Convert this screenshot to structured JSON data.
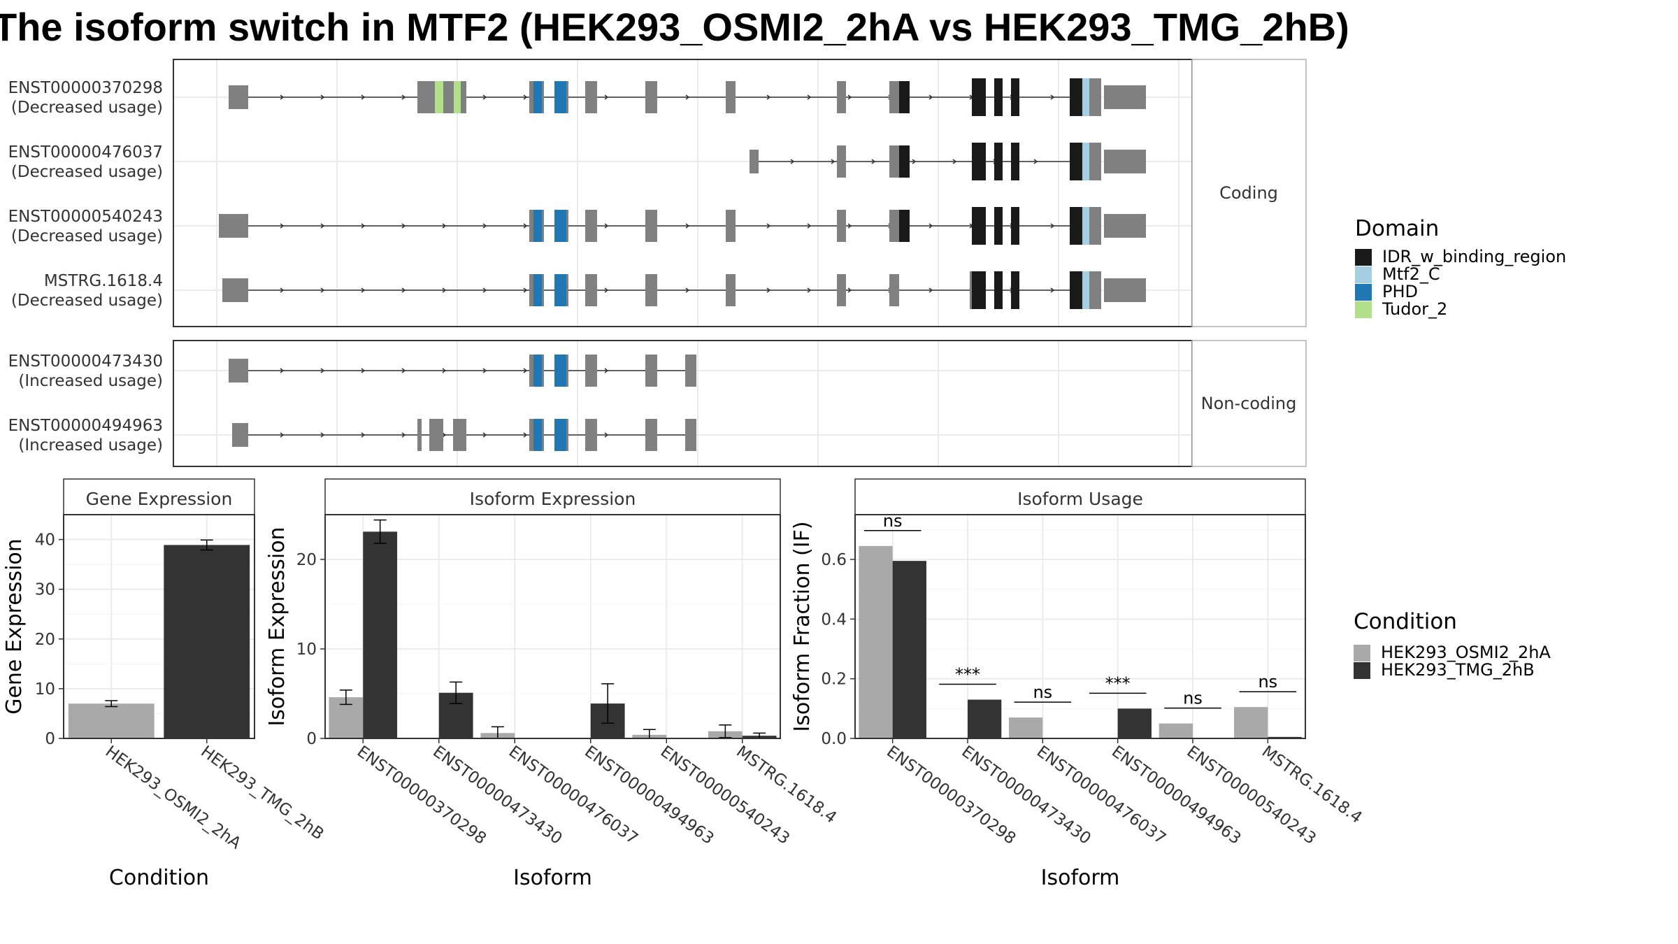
{
  "title": "The isoform switch in MTF2 (HEK293_OSMI2_2hA vs HEK293_TMG_2hB)",
  "colors": {
    "exon": "#808080",
    "IDR_w_binding_region": "#1a1a1a",
    "Mtf2_C": "#a6cee3",
    "PHD": "#1f78b4",
    "Tudor_2": "#b2df8a",
    "cond_A": "#a9a9a9",
    "cond_B": "#333333"
  },
  "structure": {
    "facets": [
      "Coding",
      "Non-coding"
    ],
    "transcripts": [
      {
        "id": "ENST00000370298",
        "usage": "(Decreased usage)",
        "group": 0
      },
      {
        "id": "ENST00000476037",
        "usage": "(Decreased usage)",
        "group": 0
      },
      {
        "id": "ENST00000540243",
        "usage": "(Decreased usage)",
        "group": 0
      },
      {
        "id": "MSTRG.1618.4",
        "usage": "(Decreased usage)",
        "group": 0
      },
      {
        "id": "ENST00000473430",
        "usage": "(Increased usage)",
        "group": 1
      },
      {
        "id": "ENST00000494963",
        "usage": "(Increased usage)",
        "group": 1
      }
    ]
  },
  "legend_domain": {
    "title": "Domain",
    "items": [
      {
        "label": "IDR_w_binding_region",
        "color": "#1a1a1a"
      },
      {
        "label": "Mtf2_C",
        "color": "#a6cee3"
      },
      {
        "label": "PHD",
        "color": "#1f78b4"
      },
      {
        "label": "Tudor_2",
        "color": "#b2df8a"
      }
    ]
  },
  "legend_condition": {
    "title": "Condition",
    "items": [
      {
        "label": "HEK293_OSMI2_2hA",
        "color": "#a9a9a9"
      },
      {
        "label": "HEK293_TMG_2hB",
        "color": "#333333"
      }
    ]
  },
  "chart_data": [
    {
      "type": "bar",
      "title": "Gene Expression",
      "xlabel": "Condition",
      "ylabel": "Gene Expression",
      "ylim": [
        0,
        45
      ],
      "yticks": [
        0,
        10,
        20,
        30,
        40
      ],
      "categories": [
        "HEK293_OSMI2_2hA",
        "HEK293_TMG_2hB"
      ],
      "values": [
        7.0,
        38.9
      ],
      "errors": [
        0.6,
        1.0
      ]
    },
    {
      "type": "bar",
      "title": "Isoform Expression",
      "xlabel": "Isoform",
      "ylabel": "Isoform Expression",
      "ylim": [
        0,
        25
      ],
      "yticks": [
        0,
        10,
        20
      ],
      "categories": [
        "ENST00000370298",
        "ENST00000473430",
        "ENST00000476037",
        "ENST00000494963",
        "ENST00000540243",
        "MSTRG.1618.4"
      ],
      "series": [
        {
          "name": "HEK293_OSMI2_2hA",
          "values": [
            4.6,
            0.0,
            0.6,
            0.0,
            0.4,
            0.8
          ],
          "errors": [
            0.8,
            0.0,
            0.7,
            0.0,
            0.6,
            0.7
          ]
        },
        {
          "name": "HEK293_TMG_2hB",
          "values": [
            23.1,
            5.1,
            0.0,
            3.9,
            0.0,
            0.3
          ],
          "errors": [
            1.3,
            1.2,
            0.0,
            2.2,
            0.0,
            0.3
          ]
        }
      ]
    },
    {
      "type": "bar",
      "title": "Isoform Usage",
      "xlabel": "Isoform",
      "ylabel": "Isoform Fraction (IF)",
      "ylim": [
        0,
        0.75
      ],
      "yticks": [
        0.0,
        0.2,
        0.4,
        0.6
      ],
      "categories": [
        "ENST00000370298",
        "ENST00000473430",
        "ENST00000476037",
        "ENST00000494963",
        "ENST00000540243",
        "MSTRG.1618.4"
      ],
      "series": [
        {
          "name": "HEK293_OSMI2_2hA",
          "values": [
            0.645,
            0.0,
            0.07,
            0.0,
            0.05,
            0.105
          ]
        },
        {
          "name": "HEK293_TMG_2hB",
          "values": [
            0.595,
            0.13,
            0.0,
            0.1,
            0.0,
            0.005
          ]
        }
      ],
      "significance": [
        "ns",
        "***",
        "ns",
        "***",
        "ns",
        "ns"
      ]
    }
  ]
}
